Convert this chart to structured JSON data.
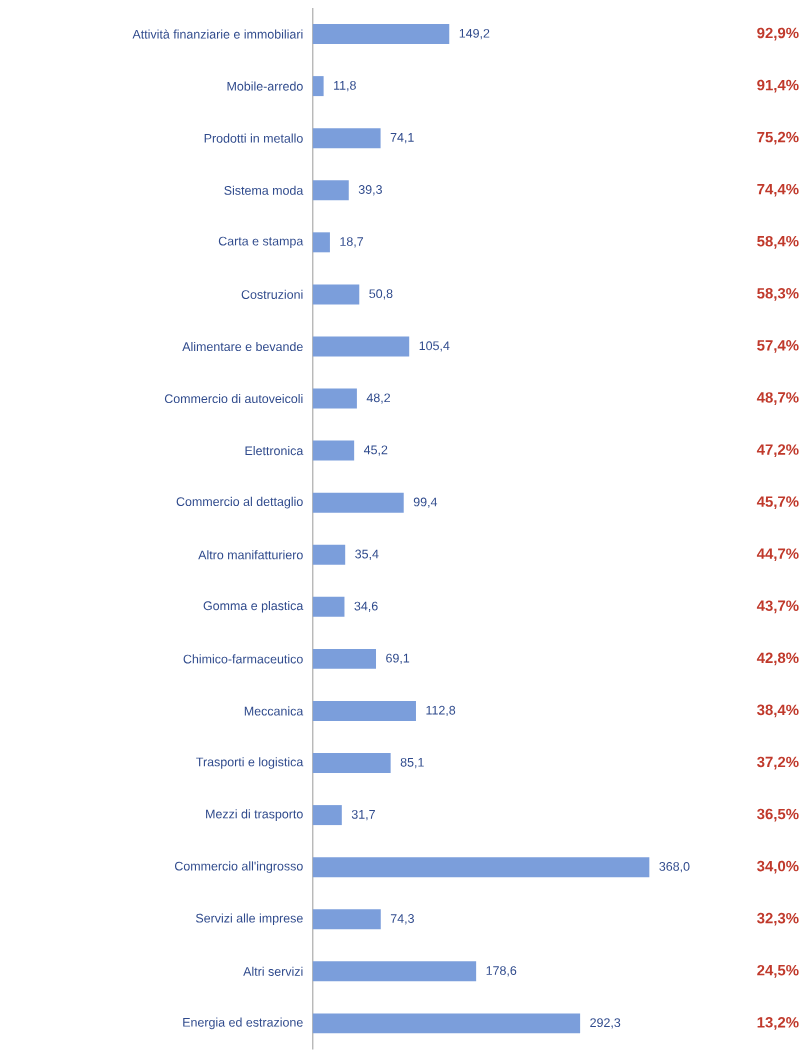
{
  "chart_data": {
    "type": "bar",
    "orientation": "horizontal",
    "categories": [
      "Attività finanziarie e immobiliari",
      "Mobile-arredo",
      "Prodotti in metallo",
      "Sistema moda",
      "Carta e stampa",
      "Costruzioni",
      "Alimentare e bevande",
      "Commercio di autoveicoli",
      "Elettronica",
      "Commercio al dettaglio",
      "Altro manifatturiero",
      "Gomma e plastica",
      "Chimico-farmaceutico",
      "Meccanica",
      "Trasporti e logistica",
      "Mezzi di trasporto",
      "Commercio all'ingrosso",
      "Servizi alle imprese",
      "Altri servizi",
      "Energia ed estrazione"
    ],
    "values": [
      149.2,
      11.8,
      74.1,
      39.3,
      18.7,
      50.8,
      105.4,
      48.2,
      45.2,
      99.4,
      35.4,
      34.6,
      69.1,
      112.8,
      85.1,
      31.7,
      368.0,
      74.3,
      178.6,
      292.3
    ],
    "value_labels": [
      "149,2",
      "11,8",
      "74,1",
      "39,3",
      "18,7",
      "50,8",
      "105,4",
      "48,2",
      "45,2",
      "99,4",
      "35,4",
      "34,6",
      "69,1",
      "112,8",
      "85,1",
      "31,7",
      "368,0",
      "74,3",
      "178,6",
      "292,3"
    ],
    "color": "#7b9edb",
    "annotations": [
      "92,9%",
      "91,4%",
      "75,2%",
      "74,4%",
      "58,4%",
      "58,3%",
      "57,4%",
      "48,7%",
      "47,2%",
      "45,7%",
      "44,7%",
      "43,7%",
      "42,8%",
      "38,4%",
      "37,2%",
      "36,5%",
      "34,0%",
      "32,3%",
      "24,5%",
      "13,2%"
    ]
  }
}
